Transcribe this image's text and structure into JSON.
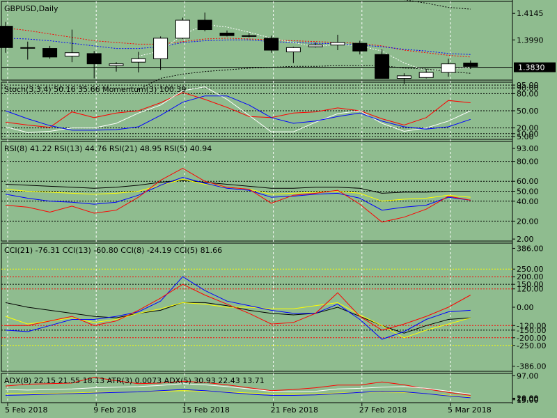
{
  "chart_data": {
    "type": "line",
    "symbol_label": "GBPUSD,Daily",
    "x_labels": [
      "5 Feb 2018",
      "9 Feb 2018",
      "15 Feb 2018",
      "21 Feb 2018",
      "27 Feb 2018",
      "5 Mar 2018"
    ],
    "x_label_index": [
      0,
      4,
      8,
      12,
      16,
      20
    ],
    "colors": {
      "background": "#8fbc8f",
      "bull": "#ffffff",
      "bear": "#000000",
      "red": "#ff0000",
      "blue": "#0000ff",
      "yellow": "#ffff00",
      "white": "#ffffff"
    },
    "panels": [
      {
        "id": "price",
        "header": "GBPUSD,Daily",
        "range": [
          1.3755,
          1.4215
        ],
        "ticks": [
          {
            "v": 1.4145,
            "t": "1.4145"
          },
          {
            "v": 1.399,
            "t": "1.3990"
          }
        ],
        "current": {
          "v": 1.383,
          "t": "1.3830"
        },
        "candles": [
          {
            "o": 1.407,
            "h": 1.4095,
            "l": 1.3915,
            "c": 1.3945
          },
          {
            "o": 1.3945,
            "h": 1.398,
            "l": 1.3875,
            "c": 1.3945
          },
          {
            "o": 1.394,
            "h": 1.3955,
            "l": 1.388,
            "c": 1.389
          },
          {
            "o": 1.3895,
            "h": 1.405,
            "l": 1.386,
            "c": 1.3915
          },
          {
            "o": 1.391,
            "h": 1.3925,
            "l": 1.3765,
            "c": 1.385
          },
          {
            "o": 1.384,
            "h": 1.386,
            "l": 1.3805,
            "c": 1.385
          },
          {
            "o": 1.386,
            "h": 1.392,
            "l": 1.38,
            "c": 1.388
          },
          {
            "o": 1.388,
            "h": 1.401,
            "l": 1.3815,
            "c": 1.4
          },
          {
            "o": 1.4,
            "h": 1.412,
            "l": 1.3995,
            "c": 1.4105
          },
          {
            "o": 1.4105,
            "h": 1.415,
            "l": 1.404,
            "c": 1.405
          },
          {
            "o": 1.403,
            "h": 1.4045,
            "l": 1.401,
            "c": 1.4015
          },
          {
            "o": 1.4015,
            "h": 1.403,
            "l": 1.4005,
            "c": 1.401
          },
          {
            "o": 1.4,
            "h": 1.4015,
            "l": 1.3915,
            "c": 1.393
          },
          {
            "o": 1.392,
            "h": 1.395,
            "l": 1.3855,
            "c": 1.3945
          },
          {
            "o": 1.395,
            "h": 1.3975,
            "l": 1.3945,
            "c": 1.396
          },
          {
            "o": 1.396,
            "h": 1.402,
            "l": 1.393,
            "c": 1.3975
          },
          {
            "o": 1.397,
            "h": 1.3985,
            "l": 1.3905,
            "c": 1.3925
          },
          {
            "o": 1.3905,
            "h": 1.3935,
            "l": 1.3765,
            "c": 1.3765
          },
          {
            "o": 1.3765,
            "h": 1.3795,
            "l": 1.373,
            "c": 1.378
          },
          {
            "o": 1.377,
            "h": 1.382,
            "l": 1.3765,
            "c": 1.38
          },
          {
            "o": 1.38,
            "h": 1.388,
            "l": 1.3775,
            "c": 1.385
          },
          {
            "o": 1.3855,
            "h": 1.387,
            "l": 1.382,
            "c": 1.3835
          }
        ],
        "lines": [
          {
            "color": "#ff0000",
            "dash": "2,2",
            "values": [
              1.406,
              1.4045,
              1.4025,
              1.4005,
              1.3985,
              1.3975,
              1.3965,
              1.3965,
              1.398,
              1.3995,
              1.4,
              1.3995,
              1.399,
              1.3985,
              1.398,
              1.3975,
              1.397,
              1.3955,
              1.393,
              1.3915,
              1.39,
              1.389
            ]
          },
          {
            "color": "#0000ff",
            "dash": "2,2",
            "values": [
              1.4,
              1.3995,
              1.3985,
              1.397,
              1.3955,
              1.394,
              1.394,
              1.395,
              1.3975,
              1.3985,
              1.399,
              1.399,
              1.398,
              1.3975,
              1.397,
              1.3968,
              1.396,
              1.395,
              1.3935,
              1.3925,
              1.391,
              1.3905
            ]
          },
          {
            "color": "#000000",
            "dash": "2,2",
            "values": [
              null,
              null,
              null,
              null,
              null,
              null,
              1.37,
              1.3765,
              1.379,
              1.3805,
              1.3815,
              1.3825,
              1.383,
              1.3835,
              1.3835,
              1.384,
              1.384,
              1.384,
              1.3825,
              1.382,
              1.3805,
              1.3795
            ]
          },
          {
            "color": "#000000",
            "dash": "2,2",
            "values": [
              null,
              null,
              null,
              null,
              null,
              null,
              null,
              null,
              null,
              null,
              null,
              null,
              null,
              null,
              null,
              null,
              null,
              1.4245,
              1.4225,
              1.4205,
              1.418,
              1.417
            ]
          },
          {
            "color": "#ffffff",
            "dash": "2,2",
            "values": [
              null,
              null,
              null,
              null,
              null,
              null,
              1.3895,
              1.3925,
              1.402,
              1.408,
              1.4065,
              1.4035,
              1.4,
              1.3975,
              1.395,
              1.3965,
              1.3955,
              1.3925,
              1.3855,
              1.381,
              1.382,
              1.383
            ]
          }
        ]
      },
      {
        "id": "stoch",
        "header": "Stoch(3,3,4) 50.16 35.66 Momentum(3) 100.39",
        "range": [
          0,
          100
        ],
        "ticks": [
          {
            "v": 95,
            "t": "95.00"
          },
          {
            "v": 90,
            "t": "90.00"
          },
          {
            "v": 80,
            "t": "80.00"
          },
          {
            "v": 50,
            "t": "50.00"
          },
          {
            "v": 20,
            "t": "20.00"
          },
          {
            "v": 10,
            "t": "10.00"
          },
          {
            "v": 5,
            "t": "5.00"
          }
        ],
        "levels": [
          95,
          90,
          80,
          50,
          20,
          10,
          5
        ],
        "lines": [
          {
            "color": "#ff0000",
            "values": [
              30,
              25,
              21,
              48,
              38,
              46,
              50,
              64,
              82,
              70,
              56,
              40,
              38,
              46,
              48,
              55,
              50,
              36,
              25,
              38,
              68,
              64
            ]
          },
          {
            "color": "#ffffff",
            "values": [
              22,
              12,
              14,
              20,
              20,
              28,
              46,
              60,
              85,
              92,
              70,
              42,
              13,
              13,
              30,
              45,
              50,
              28,
              14,
              20,
              32,
              50
            ]
          },
          {
            "color": "#0000ff",
            "values": [
              50,
              36,
              24,
              16,
              16,
              17,
              22,
              42,
              65,
              76,
              76,
              60,
              38,
              28,
              32,
              40,
              46,
              32,
              22,
              18,
              22,
              35
            ]
          }
        ]
      },
      {
        "id": "rsi",
        "header": "RSI(8) 41.22 RSI(13) 44.76 RSI(21) 48.95 RSI(5) 40.94",
        "range": [
          0,
          100
        ],
        "ticks": [
          {
            "v": 93,
            "t": "93.00"
          },
          {
            "v": 80,
            "t": "80.00"
          },
          {
            "v": 60,
            "t": "60.00"
          },
          {
            "v": 50,
            "t": "50.00"
          },
          {
            "v": 40,
            "t": "40.00"
          },
          {
            "v": 20,
            "t": "20.00"
          },
          {
            "v": 2,
            "t": "2.00"
          }
        ],
        "levels": [
          80,
          60,
          50,
          40,
          20
        ],
        "lines": [
          {
            "color": "#000000",
            "values": [
              57,
              56,
              55,
              54,
              53,
              54,
              56,
              59,
              61,
              59,
              57,
              55,
              53,
              53,
              54,
              54,
              53,
              48,
              49,
              49,
              50,
              50
            ]
          },
          {
            "color": "#ffff00",
            "values": [
              52,
              50,
              49,
              48,
              47,
              48,
              50,
              56,
              62,
              57,
              54,
              52,
              47,
              48,
              49,
              50,
              48,
              40,
              42,
              43,
              46,
              44
            ]
          },
          {
            "color": "#0000ff",
            "values": [
              47,
              43,
              40,
              39,
              37,
              39,
              46,
              56,
              64,
              58,
              53,
              51,
              44,
              45,
              47,
              48,
              43,
              31,
              34,
              36,
              44,
              41
            ]
          },
          {
            "color": "#ff0000",
            "values": [
              36,
              34,
              29,
              35,
              28,
              31,
              44,
              61,
              73,
              60,
              54,
              52,
              38,
              46,
              48,
              51,
              37,
              19,
              24,
              32,
              45,
              41
            ]
          }
        ]
      },
      {
        "id": "cci",
        "header": "CCI(21) -76.31 CCI(13) -60.80 CCI(8) -24.19 CCI(5) 81.66",
        "range": [
          -420,
          420
        ],
        "ticks": [
          {
            "v": 386,
            "t": "386.00"
          },
          {
            "v": 250,
            "t": "250.00"
          },
          {
            "v": 200,
            "t": "200.00"
          },
          {
            "v": 150,
            "t": "150.00"
          },
          {
            "v": 120,
            "t": "120.00"
          },
          {
            "v": 0,
            "t": "0.00"
          },
          {
            "v": -120,
            "t": "-120.00"
          },
          {
            "v": -150,
            "t": "-150.00"
          },
          {
            "v": -200,
            "t": "-200.00"
          },
          {
            "v": -250,
            "t": "-250.00"
          },
          {
            "v": -386,
            "t": "-386.00"
          }
        ],
        "levels": [
          {
            "v": 250,
            "color": "#ffff00"
          },
          {
            "v": 200,
            "color": "#ff0000"
          },
          {
            "v": 150,
            "color": "#000000"
          },
          {
            "v": 120,
            "color": "#ff0000"
          },
          {
            "v": -120,
            "color": "#ff0000"
          },
          {
            "v": -150,
            "color": "#000000"
          },
          {
            "v": -200,
            "color": "#ff0000"
          },
          {
            "v": -250,
            "color": "#ffff00"
          }
        ],
        "lines": [
          {
            "color": "#000000",
            "values": [
              30,
              0,
              -20,
              -40,
              -60,
              -70,
              -40,
              -20,
              30,
              30,
              10,
              -20,
              -40,
              -50,
              -40,
              0,
              -60,
              -120,
              -170,
              -120,
              -80,
              -70
            ]
          },
          {
            "color": "#ffff00",
            "values": [
              -60,
              -110,
              -90,
              -70,
              -100,
              -80,
              -40,
              -10,
              30,
              20,
              0,
              0,
              -10,
              -10,
              10,
              30,
              -50,
              -120,
              -200,
              -150,
              -110,
              -70
            ]
          },
          {
            "color": "#0000ff",
            "values": [
              -150,
              -160,
              -120,
              -80,
              -80,
              -60,
              -30,
              40,
              200,
              110,
              40,
              10,
              -20,
              -40,
              -40,
              20,
              -80,
              -210,
              -160,
              -80,
              -30,
              -20
            ]
          },
          {
            "color": "#ff0000",
            "values": [
              -120,
              -120,
              -90,
              -60,
              -120,
              -90,
              -20,
              60,
              150,
              80,
              20,
              -40,
              -110,
              -100,
              -40,
              95,
              -60,
              -150,
              -110,
              -60,
              0,
              80
            ]
          }
        ]
      },
      {
        "id": "adx",
        "header": "ADX(8) 22.15 21.55 18.13 ATR(3) 0.0073 ADX(5) 30.93 22.43 13.71",
        "range": [
          5,
          105
        ],
        "ticks": [
          {
            "v": 97,
            "t": "97.00"
          },
          {
            "v": 20,
            "t": "20.00"
          },
          {
            "v": 18,
            "t": "18.00"
          },
          {
            "v": 15,
            "t": "15.00"
          }
        ],
        "lines": [
          {
            "color": "#ff0000",
            "values": [
              62,
              68,
              70,
              72,
              92,
              80,
              70,
              72,
              78,
              74,
              66,
              56,
              46,
              50,
              56,
              65,
              65,
              76,
              66,
              52,
              40,
              30
            ]
          },
          {
            "color": "#ffffff",
            "values": [
              50,
              48,
              50,
              52,
              56,
              58,
              60,
              64,
              70,
              66,
              60,
              52,
              44,
              42,
              44,
              52,
              54,
              58,
              60,
              54,
              44,
              34
            ]
          },
          {
            "color": "#ffff00",
            "values": [
              36,
              36,
              37,
              38,
              40,
              41,
              42,
              44,
              46,
              44,
              42,
              38,
              35,
              34,
              35,
              38,
              40,
              42,
              40,
              36,
              30,
              24
            ]
          },
          {
            "color": "#0000ff",
            "values": [
              30,
              32,
              34,
              36,
              38,
              40,
              42,
              46,
              50,
              46,
              40,
              34,
              30,
              30,
              32,
              36,
              40,
              44,
              42,
              36,
              28,
              22
            ]
          }
        ]
      }
    ]
  }
}
